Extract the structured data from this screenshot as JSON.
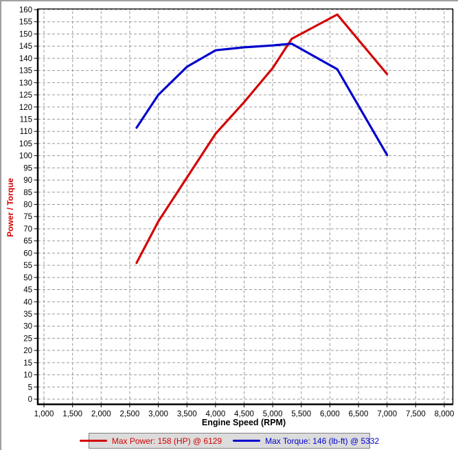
{
  "window": {
    "background": "#ffffff",
    "edge_border_color": "#a0a0a0"
  },
  "chart_data": {
    "type": "line",
    "title": "",
    "xlabel": "Engine Speed (RPM)",
    "ylabel": "Power / Torque",
    "ylabel_color": "#d40000",
    "xlim": [
      1000,
      8000
    ],
    "ylim": [
      0,
      160
    ],
    "grid": true,
    "grid_color": "#999999",
    "grid_style": "dashed",
    "axis_color": "#000000",
    "tick_label_color": "#000000",
    "x_tick_values": [
      1000,
      1500,
      2000,
      2500,
      3000,
      3500,
      4000,
      4500,
      5000,
      5500,
      6000,
      6500,
      7000,
      7500,
      8000
    ],
    "x_tick_labels": [
      "1,000",
      "1,500",
      "2,000",
      "2,500",
      "3,000",
      "3,500",
      "4,000",
      "4,500",
      "5,000",
      "5,500",
      "6,000",
      "6,500",
      "7,000",
      "7,500",
      "8,000"
    ],
    "y_tick_values": [
      0,
      5,
      10,
      15,
      20,
      25,
      30,
      35,
      40,
      45,
      50,
      55,
      60,
      65,
      70,
      75,
      80,
      85,
      90,
      95,
      100,
      105,
      110,
      115,
      120,
      125,
      130,
      135,
      140,
      145,
      150,
      155,
      160
    ],
    "legend_position": "bottom",
    "legend_background": "#dcdcdc",
    "legend_border": "#808080",
    "series": [
      {
        "name": "Max Power: 158 (HP) @ 6129",
        "color": "#d40000",
        "max_value": 158,
        "max_at_rpm": 6129,
        "x": [
          2620,
          3000,
          3500,
          4000,
          4500,
          5000,
          5332,
          6129,
          7000
        ],
        "values": [
          56,
          73,
          91,
          109,
          122,
          136,
          148,
          158,
          133.5
        ]
      },
      {
        "name": "Max Torque: 146 (lb-ft) @ 5332",
        "color": "#0000cd",
        "max_value": 146,
        "max_at_rpm": 5332,
        "x": [
          2620,
          3000,
          3500,
          4000,
          4500,
          5000,
          5332,
          6129,
          7000
        ],
        "values": [
          111.5,
          125,
          136.5,
          143.3,
          144.5,
          145.3,
          146,
          135.5,
          100.3
        ]
      }
    ]
  }
}
